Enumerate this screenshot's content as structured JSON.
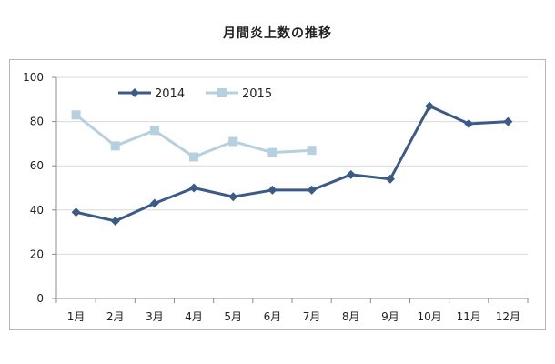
{
  "chart_data": {
    "type": "line",
    "title": "月間炎上数の推移",
    "xlabel": "",
    "ylabel": "",
    "categories": [
      "1月",
      "2月",
      "3月",
      "4月",
      "5月",
      "6月",
      "7月",
      "8月",
      "9月",
      "10月",
      "11月",
      "12月"
    ],
    "ylim": [
      0,
      100
    ],
    "yticks": [
      0,
      20,
      40,
      60,
      80,
      100
    ],
    "grid": true,
    "legend_position": "top-left",
    "series": [
      {
        "name": "2014",
        "color": "#3b5b86",
        "marker": "diamond",
        "values": [
          39,
          35,
          43,
          50,
          46,
          49,
          49,
          56,
          54,
          87,
          79,
          80
        ]
      },
      {
        "name": "2015",
        "color": "#b7d0df",
        "marker": "square",
        "values": [
          83,
          69,
          76,
          64,
          71,
          66,
          67,
          null,
          null,
          null,
          null,
          null
        ]
      }
    ]
  }
}
